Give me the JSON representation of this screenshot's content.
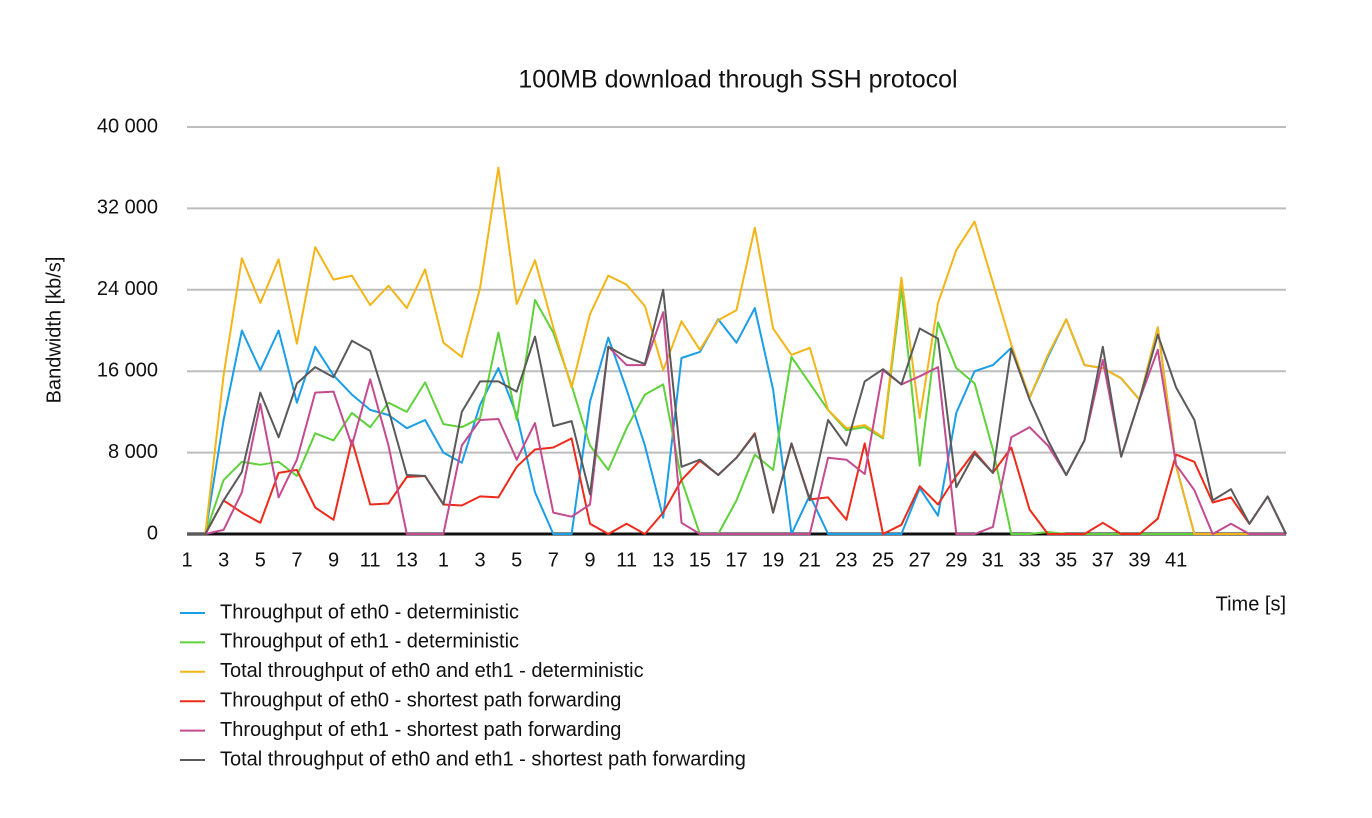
{
  "chart_data": {
    "type": "line",
    "title": "100MB download through SSH protocol",
    "x_label": "Time [s]",
    "y_label": "Bandwidth [kb/s]",
    "grid": true,
    "legend": "bottom-left",
    "categories": [
      "1",
      null,
      "3",
      null,
      "5",
      null,
      "7",
      null,
      "9",
      null,
      "11",
      null,
      "13",
      null,
      "1",
      null,
      "3",
      null,
      "5",
      null,
      "7",
      null,
      "9",
      null,
      "11",
      null,
      "13",
      null,
      "15",
      null,
      "17",
      null,
      "19",
      null,
      "21",
      null,
      "23",
      null,
      "25",
      null,
      "27",
      null,
      "29",
      null,
      "31",
      null,
      "33",
      null,
      "35",
      null,
      "37",
      null,
      "39",
      null,
      "41",
      null,
      null,
      null,
      null,
      null,
      null
    ],
    "ylim": [
      0,
      40000
    ],
    "yticks": [
      0,
      {
        "value": 8000,
        "label": "8 000"
      },
      {
        "value": 16000,
        "label": "16 000"
      },
      {
        "value": 24000,
        "label": "24 000"
      },
      {
        "value": 32000,
        "label": "32 000"
      },
      {
        "value": 40000,
        "label": "40 000"
      }
    ],
    "series": [
      {
        "name": "Throughput of eth0 - deterministic",
        "color": "#1a9ee8",
        "values": [
          0,
          0,
          11200,
          20000,
          16100,
          20000,
          12900,
          18400,
          15600,
          13700,
          12200,
          11700,
          10400,
          11200,
          8000,
          7000,
          12700,
          16300,
          11700,
          4100,
          0,
          0,
          13000,
          19300,
          14200,
          8700,
          1600,
          17300,
          17900,
          21100,
          18800,
          22200,
          14200,
          0,
          3800,
          0,
          0,
          0,
          0,
          0,
          4500,
          1800,
          11900,
          16000,
          16600,
          18300,
          13400,
          17400,
          21100,
          16600,
          16300,
          15300,
          13200,
          20300,
          6700,
          0,
          0,
          0,
          0,
          0,
          0
        ]
      },
      {
        "name": "Throughput of eth1 - deterministic",
        "color": "#5fd13b",
        "values": [
          0,
          0,
          5300,
          7100,
          6800,
          7100,
          5700,
          9900,
          9200,
          11900,
          10500,
          12900,
          12000,
          14900,
          10800,
          10500,
          11400,
          19800,
          11200,
          23000,
          19800,
          14600,
          8700,
          6300,
          10400,
          13700,
          14700,
          5300,
          0,
          0,
          3300,
          7800,
          6300,
          17400,
          14800,
          12200,
          10200,
          10500,
          9400,
          24200,
          6700,
          20800,
          16300,
          14800,
          8300,
          0,
          0,
          200,
          0,
          0,
          0,
          0,
          0,
          0,
          0,
          0,
          0,
          0,
          0,
          0,
          0
        ]
      },
      {
        "name": "Total throughput of eth0 and eth1 - deterministic",
        "color": "#f4b519",
        "values": [
          0,
          0,
          15600,
          27100,
          22700,
          27000,
          18700,
          28200,
          25000,
          25400,
          22500,
          24400,
          22200,
          26000,
          18800,
          17400,
          24200,
          36000,
          22600,
          26900,
          20300,
          14400,
          21600,
          25400,
          24500,
          22400,
          16100,
          20900,
          18100,
          21000,
          22000,
          30100,
          20200,
          17600,
          18300,
          12200,
          10400,
          10700,
          9500,
          25200,
          11400,
          22700,
          27900,
          30700,
          24700,
          18600,
          13400,
          17600,
          21100,
          16600,
          16300,
          15300,
          13200,
          20300,
          6700,
          0,
          0,
          0,
          0,
          0,
          0
        ]
      },
      {
        "name": "Throughput of eth0 - shortest path forwarding",
        "color": "#ee2a1a",
        "values": [
          0,
          0,
          3300,
          2100,
          1100,
          6000,
          6300,
          2600,
          1400,
          9200,
          2900,
          3000,
          5600,
          5700,
          2900,
          2800,
          3700,
          3600,
          6600,
          8300,
          8500,
          9400,
          1000,
          0,
          1000,
          0,
          2100,
          5300,
          7200,
          5800,
          7500,
          9900,
          2100,
          8900,
          3400,
          3600,
          1400,
          8900,
          0,
          900,
          4700,
          2900,
          5700,
          8100,
          6000,
          8500,
          2400,
          0,
          0,
          0,
          1100,
          0,
          0,
          1500,
          7800,
          7100,
          3100,
          3600,
          1000,
          3700,
          0
        ]
      },
      {
        "name": "Throughput of eth1 - shortest path forwarding",
        "color": "#c44b8f",
        "values": [
          0,
          0,
          400,
          4100,
          12800,
          3600,
          7300,
          13900,
          14000,
          8700,
          15200,
          8700,
          0,
          0,
          0,
          8700,
          11200,
          11300,
          7300,
          10900,
          2100,
          1700,
          2900,
          18400,
          16600,
          16600,
          21800,
          1100,
          0,
          0,
          0,
          0,
          0,
          0,
          0,
          7500,
          7300,
          5900,
          16100,
          14700,
          15500,
          16400,
          0,
          0,
          700,
          9500,
          10500,
          8700,
          5800,
          9200,
          17100,
          7600,
          13200,
          18100,
          6800,
          4300,
          0,
          1000,
          0,
          0,
          0
        ]
      },
      {
        "name": "Total throughput of eth0 and eth1 - shortest path forwarding",
        "color": "#5a5a5a",
        "values": [
          0,
          0,
          3300,
          6100,
          13900,
          9500,
          14800,
          16400,
          15400,
          19000,
          18000,
          12200,
          5800,
          5700,
          2900,
          12000,
          15000,
          15000,
          14000,
          19400,
          10600,
          11100,
          3900,
          18400,
          17400,
          16700,
          24000,
          6600,
          7300,
          5800,
          7500,
          9800,
          2100,
          8900,
          3300,
          11200,
          8700,
          15000,
          16200,
          14700,
          20200,
          19200,
          4600,
          7900,
          6000,
          18200,
          13200,
          9200,
          5800,
          9200,
          18400,
          7600,
          13200,
          19600,
          14400,
          11200,
          3300,
          4400,
          1000,
          3700,
          0
        ]
      }
    ]
  }
}
